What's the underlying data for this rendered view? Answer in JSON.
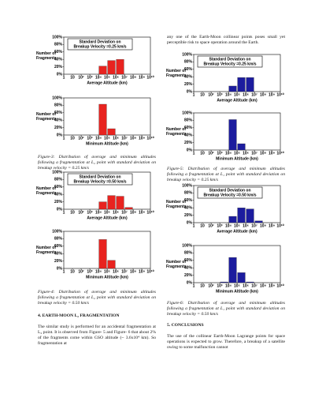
{
  "captions": [
    "Figure-3: Distribution of average and minimum altitudes following a fragmentation at L₂ point with standard deviation on breakup velocity = 0.25 km/s",
    "Figure-4: Distribution of average and minimum altitudes following a fragmentation at L₂ point with standard deviation on breakup velocity = 0.50 km/s",
    "Figure-5: Distribution of average and minimum altitudes following a fragmentation at L₁ point with standard deviation on breakup velocity = 0.25 km/s",
    "Figure-6: Distribution of average and minimum altitudes following a fragmentation at L₁ point with standard deviation on breakup velocity = 0.50 km/s"
  ],
  "sections": [
    {
      "heading": "4. EARTH-MOON L₂ FRAGMENTATION",
      "text": "The similar study is performed for an accidental fragmentation at L₂ point. It is observed from Figure- 5 and Figure- 6 that about 2% of the fragments come within GSO altitude (~ 3.6x10⁴ km). So fragmentation at"
    },
    {
      "heading": "5. CONCLUSIONS",
      "text": "The use of the collinear Earth-Moon Lagrange points for space operations is expected to grow. Therefore, a breakup of a satellite owing to some malfunction cannot"
    }
  ],
  "right_top_text": "any one of the Earth-Moon collinear points poses small yet perceptible risk to space operation around the Earth.",
  "chart_data": [
    {
      "type": "histogram",
      "annotation": [
        "Standard Deviation on",
        "Breakup Velocity =0.25 km/s"
      ],
      "y_label": [
        "Number of",
        "Fragments"
      ],
      "x_label": "Average Altitude (km)",
      "color": "#e8231f",
      "bins": [
        10000,
        100000,
        1000000,
        10000000
      ],
      "values": [
        22,
        37,
        40
      ],
      "log_x": true,
      "xlim": [
        1,
        10000000000
      ],
      "xticks": [
        1,
        10,
        {
          "value": 100,
          "label": "10²"
        },
        {
          "value": 1000,
          "label": "10³"
        },
        {
          "value": 10000,
          "label": "10⁴"
        },
        {
          "value": 100000,
          "label": "10⁵"
        },
        {
          "value": 1000000,
          "label": "10⁶"
        },
        {
          "value": 10000000,
          "label": "10⁷"
        },
        {
          "value": 100000000,
          "label": "10⁸"
        },
        {
          "value": 1000000000,
          "label": "10⁹"
        },
        {
          "value": 10000000000,
          "label": "10¹⁰"
        }
      ],
      "ylim": [
        0,
        100
      ],
      "yticks": [
        {
          "value": 0,
          "label": "0%"
        },
        {
          "value": 20,
          "label": "20%"
        },
        {
          "value": 40,
          "label": "40%"
        },
        {
          "value": 60,
          "label": "60%"
        },
        {
          "value": 80,
          "label": "80%"
        },
        {
          "value": 100,
          "label": "100%"
        }
      ]
    },
    {
      "type": "histogram",
      "y_label": [
        "Number of",
        "Fragments"
      ],
      "x_label": "Minimum Altitude (km)",
      "color": "#e8231f",
      "bins": [
        10000,
        100000,
        1000000
      ],
      "values": [
        83,
        17
      ],
      "log_x": true,
      "xlim": [
        1,
        10000000000
      ],
      "xticks": [
        1,
        10,
        {
          "value": 100,
          "label": "10²"
        },
        {
          "value": 1000,
          "label": "10³"
        },
        {
          "value": 10000,
          "label": "10⁴"
        },
        {
          "value": 100000,
          "label": "10⁵"
        },
        {
          "value": 1000000,
          "label": "10⁶"
        },
        {
          "value": 10000000,
          "label": "10⁷"
        },
        {
          "value": 100000000,
          "label": "10⁸"
        },
        {
          "value": 1000000000,
          "label": "10⁹"
        },
        {
          "value": 10000000000,
          "label": "10¹⁰"
        }
      ],
      "ylim": [
        0,
        100
      ],
      "yticks": [
        {
          "value": 0,
          "label": "0%"
        },
        {
          "value": 20,
          "label": "20%"
        },
        {
          "value": 40,
          "label": "40%"
        },
        {
          "value": 60,
          "label": "60%"
        },
        {
          "value": 80,
          "label": "80%"
        },
        {
          "value": 100,
          "label": "100%"
        }
      ]
    },
    {
      "type": "histogram",
      "annotation": [
        "Standard Deviation on",
        "Breakup Velocity =0.50 km/s"
      ],
      "y_label": [
        "Number of",
        "Fragments"
      ],
      "x_label": "Average Altitude (km)",
      "color": "#e8231f",
      "bins": [
        10000,
        100000,
        1000000,
        10000000,
        100000000
      ],
      "values": [
        20,
        37,
        35,
        5
      ],
      "log_x": true,
      "xlim": [
        1,
        10000000000
      ],
      "xticks": [
        1,
        10,
        {
          "value": 100,
          "label": "10²"
        },
        {
          "value": 1000,
          "label": "10³"
        },
        {
          "value": 10000,
          "label": "10⁴"
        },
        {
          "value": 100000,
          "label": "10⁵"
        },
        {
          "value": 1000000,
          "label": "10⁶"
        },
        {
          "value": 10000000,
          "label": "10⁷"
        },
        {
          "value": 100000000,
          "label": "10⁸"
        },
        {
          "value": 1000000000,
          "label": "10⁹"
        },
        {
          "value": 10000000000,
          "label": "10¹⁰"
        }
      ],
      "ylim": [
        0,
        100
      ],
      "yticks": [
        {
          "value": 0,
          "label": "0%"
        },
        {
          "value": 20,
          "label": "20%"
        },
        {
          "value": 40,
          "label": "40%"
        },
        {
          "value": 60,
          "label": "60%"
        },
        {
          "value": 80,
          "label": "80%"
        },
        {
          "value": 100,
          "label": "100%"
        }
      ]
    },
    {
      "type": "histogram",
      "y_label": [
        "Number of",
        "Fragments"
      ],
      "x_label": "Minimum Altitude (km)",
      "color": "#e8231f",
      "bins": [
        10000,
        100000,
        1000000
      ],
      "values": [
        78,
        22
      ],
      "log_x": true,
      "xlim": [
        1,
        10000000000
      ],
      "xticks": [
        1,
        10,
        {
          "value": 100,
          "label": "10²"
        },
        {
          "value": 1000,
          "label": "10³"
        },
        {
          "value": 10000,
          "label": "10⁴"
        },
        {
          "value": 100000,
          "label": "10⁵"
        },
        {
          "value": 1000000,
          "label": "10⁶"
        },
        {
          "value": 10000000,
          "label": "10⁷"
        },
        {
          "value": 100000000,
          "label": "10⁸"
        },
        {
          "value": 1000000000,
          "label": "10⁹"
        },
        {
          "value": 10000000000,
          "label": "10¹⁰"
        }
      ],
      "ylim": [
        0,
        100
      ],
      "yticks": [
        {
          "value": 0,
          "label": "0%"
        },
        {
          "value": 20,
          "label": "20%"
        },
        {
          "value": 40,
          "label": "40%"
        },
        {
          "value": 60,
          "label": "60%"
        },
        {
          "value": 80,
          "label": "80%"
        },
        {
          "value": 100,
          "label": "100%"
        }
      ]
    },
    {
      "type": "histogram",
      "annotation": [
        "Standard Deviation on",
        "Breakup Velocity =0.25 km/s"
      ],
      "y_label": [
        "Number of",
        "Fragments"
      ],
      "x_label": "Average Altitude (km)",
      "color": "#1c1c9e",
      "bins": [
        10000,
        100000,
        1000000,
        10000000
      ],
      "values": [
        15,
        38,
        38
      ],
      "log_x": true,
      "xlim": [
        1,
        10000000000
      ],
      "xticks": [
        1,
        10,
        {
          "value": 100,
          "label": "10²"
        },
        {
          "value": 1000,
          "label": "10³"
        },
        {
          "value": 10000,
          "label": "10⁴"
        },
        {
          "value": 100000,
          "label": "10⁵"
        },
        {
          "value": 1000000,
          "label": "10⁶"
        },
        {
          "value": 10000000,
          "label": "10⁷"
        },
        {
          "value": 100000000,
          "label": "10⁸"
        },
        {
          "value": 1000000000,
          "label": "10⁹"
        },
        {
          "value": 10000000000,
          "label": "10¹⁰"
        }
      ],
      "ylim": [
        0,
        100
      ],
      "yticks": [
        {
          "value": 0,
          "label": "0%"
        },
        {
          "value": 20,
          "label": "20%"
        },
        {
          "value": 40,
          "label": "40%"
        },
        {
          "value": 60,
          "label": "60%"
        },
        {
          "value": 80,
          "label": "80%"
        },
        {
          "value": 100,
          "label": "100%"
        }
      ]
    },
    {
      "type": "histogram",
      "y_label": [
        "Number of",
        "Fragments"
      ],
      "x_label": "Minimum Altitude (km)",
      "color": "#1c1c9e",
      "bins": [
        10000,
        100000,
        1000000
      ],
      "values": [
        82,
        17
      ],
      "log_x": true,
      "xlim": [
        1,
        10000000000
      ],
      "xticks": [
        1,
        10,
        {
          "value": 100,
          "label": "10²"
        },
        {
          "value": 1000,
          "label": "10³"
        },
        {
          "value": 10000,
          "label": "10⁴"
        },
        {
          "value": 100000,
          "label": "10⁵"
        },
        {
          "value": 1000000,
          "label": "10⁶"
        },
        {
          "value": 10000000,
          "label": "10⁷"
        },
        {
          "value": 100000000,
          "label": "10⁸"
        },
        {
          "value": 1000000000,
          "label": "10⁹"
        },
        {
          "value": 10000000000,
          "label": "10¹⁰"
        }
      ],
      "ylim": [
        0,
        100
      ],
      "yticks": [
        {
          "value": 0,
          "label": "0%"
        },
        {
          "value": 20,
          "label": "20%"
        },
        {
          "value": 40,
          "label": "40%"
        },
        {
          "value": 60,
          "label": "60%"
        },
        {
          "value": 80,
          "label": "80%"
        },
        {
          "value": 100,
          "label": "100%"
        }
      ]
    },
    {
      "type": "histogram",
      "annotation": [
        "Standard Deviation on",
        "Breakup Velocity =0.50 km/s"
      ],
      "y_label": [
        "Number of",
        "Fragments"
      ],
      "x_label": "Average Altitude (km)",
      "color": "#1c1c9e",
      "bins": [
        10000,
        100000,
        1000000,
        10000000,
        100000000
      ],
      "values": [
        17,
        40,
        37,
        5
      ],
      "log_x": true,
      "xlim": [
        1,
        10000000000
      ],
      "xticks": [
        1,
        10,
        {
          "value": 100,
          "label": "10²"
        },
        {
          "value": 1000,
          "label": "10³"
        },
        {
          "value": 10000,
          "label": "10⁴"
        },
        {
          "value": 100000,
          "label": "10⁵"
        },
        {
          "value": 1000000,
          "label": "10⁶"
        },
        {
          "value": 10000000,
          "label": "10⁷"
        },
        {
          "value": 100000000,
          "label": "10⁸"
        },
        {
          "value": 1000000000,
          "label": "10⁹"
        },
        {
          "value": 10000000000,
          "label": "10¹⁰"
        }
      ],
      "ylim": [
        0,
        100
      ],
      "yticks": [
        {
          "value": 0,
          "label": "0%"
        },
        {
          "value": 20,
          "label": "20%"
        },
        {
          "value": 40,
          "label": "40%"
        },
        {
          "value": 60,
          "label": "60%"
        },
        {
          "value": 80,
          "label": "80%"
        },
        {
          "value": 100,
          "label": "100%"
        }
      ]
    },
    {
      "type": "histogram",
      "y_label": [
        "Number of",
        "Fragments"
      ],
      "x_label": "Minimum Altitude (km)",
      "color": "#1c1c9e",
      "bins": [
        1000,
        10000,
        100000,
        1000000,
        10000000
      ],
      "values": [
        2,
        68,
        27,
        2
      ],
      "log_x": true,
      "xlim": [
        1,
        10000000000
      ],
      "xticks": [
        1,
        10,
        {
          "value": 100,
          "label": "10²"
        },
        {
          "value": 1000,
          "label": "10³"
        },
        {
          "value": 10000,
          "label": "10⁴"
        },
        {
          "value": 100000,
          "label": "10⁵"
        },
        {
          "value": 1000000,
          "label": "10⁶"
        },
        {
          "value": 10000000,
          "label": "10⁷"
        },
        {
          "value": 100000000,
          "label": "10⁸"
        },
        {
          "value": 1000000000,
          "label": "10⁹"
        },
        {
          "value": 10000000000,
          "label": "10¹⁰"
        }
      ],
      "ylim": [
        0,
        100
      ],
      "yticks": [
        {
          "value": 0,
          "label": "0%"
        },
        {
          "value": 20,
          "label": "20%"
        },
        {
          "value": 40,
          "label": "40%"
        },
        {
          "value": 60,
          "label": "60%"
        },
        {
          "value": 80,
          "label": "80%"
        },
        {
          "value": 100,
          "label": "100%"
        }
      ]
    }
  ]
}
